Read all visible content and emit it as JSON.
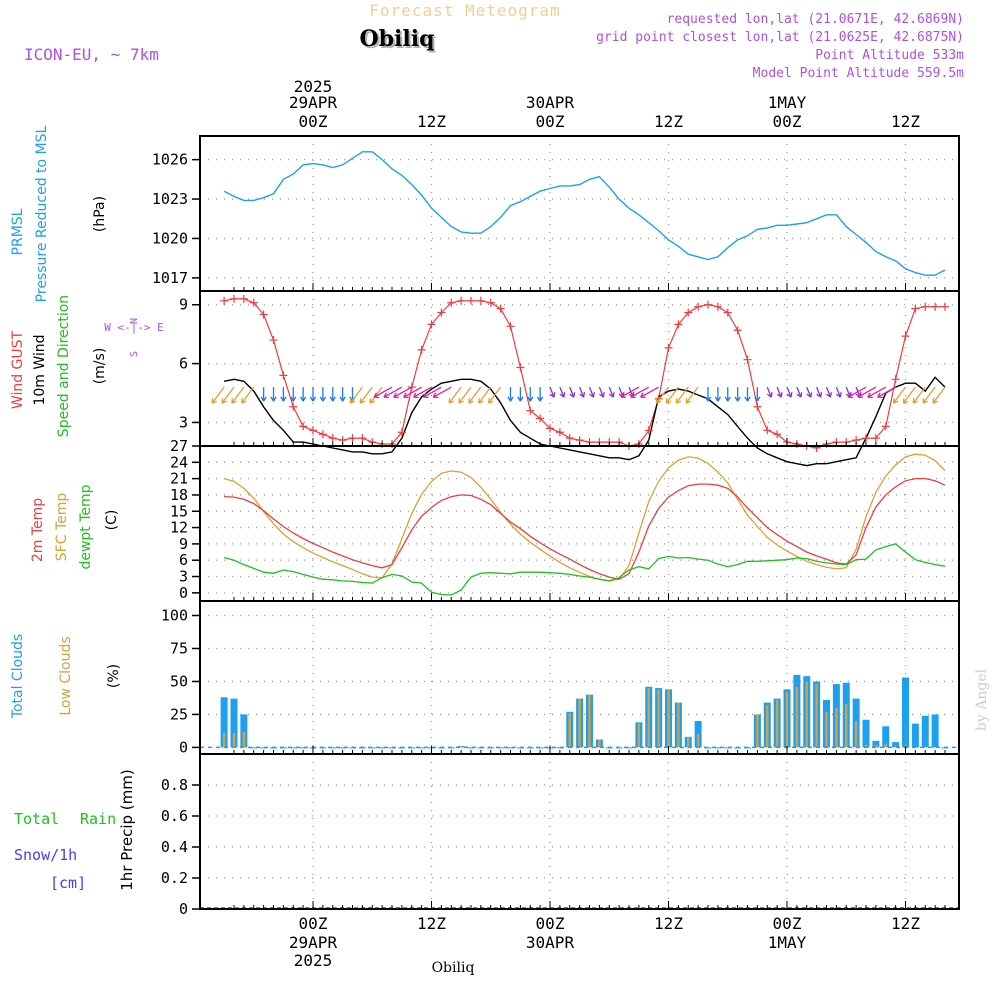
{
  "header": {
    "title": "Forecast Meteogram",
    "location": "Obiliq",
    "model": "ICON-EU, ~ 7km",
    "requested": "requested lon,lat (21.0671E, 42.6869N)",
    "gridpoint": "grid point closest lon,lat (21.0625E, 42.6875N)",
    "point_alt": "Point Altitude 533m",
    "model_alt": "Model Point Altitude 559.5m",
    "footer_location": "Obiliq",
    "credit": "by Angel"
  },
  "time_axis": {
    "top": {
      "year": "2025",
      "labels": [
        {
          "hour": 0,
          "line1": "29APR",
          "line2": "00Z"
        },
        {
          "hour": 12,
          "line1": "",
          "line2": "12Z"
        },
        {
          "hour": 24,
          "line1": "30APR",
          "line2": "00Z"
        },
        {
          "hour": 36,
          "line1": "",
          "line2": "12Z"
        },
        {
          "hour": 48,
          "line1": "1MAY",
          "line2": "00Z"
        },
        {
          "hour": 60,
          "line1": "",
          "line2": "12Z"
        }
      ]
    },
    "bottom": {
      "year": "2025",
      "labels": [
        {
          "hour": 0,
          "line1": "00Z",
          "line2": "29APR"
        },
        {
          "hour": 12,
          "line1": "12Z",
          "line2": ""
        },
        {
          "hour": 24,
          "line1": "00Z",
          "line2": "30APR"
        },
        {
          "hour": 36,
          "line1": "12Z",
          "line2": ""
        },
        {
          "hour": 48,
          "line1": "00Z",
          "line2": "1MAY"
        },
        {
          "hour": 60,
          "line1": "12Z",
          "line2": ""
        }
      ]
    }
  },
  "panels": {
    "pressure": {
      "label1": "PRMSL",
      "label2": "Pressure Reduced to MSL",
      "unit": "(hPa)"
    },
    "wind": {
      "label1": "Wind GUST",
      "label2": "10m Wind",
      "label3": "Speed and Direction",
      "unit": "(m/s)",
      "compass_n": "N",
      "compass_s": "S",
      "compass_row": "W <-|-> E"
    },
    "temp": {
      "label1": "2m Temp",
      "label2": "SFC Temp",
      "label3": "dewpt Temp",
      "unit": "(C)"
    },
    "clouds": {
      "label1": "Total Clouds",
      "label2": "Low Clouds",
      "unit": "(%)"
    },
    "precip": {
      "label1": "Total",
      "label2": "Rain",
      "label3": "Snow/1h",
      "label4": "[cm]",
      "unit": "1hr Precip (mm)"
    }
  },
  "colors": {
    "pressure": "#1ea0f0",
    "gust": "#f03c3c",
    "wind": "#000000",
    "temp2m": "#e84040",
    "sfc": "#e0a030",
    "dewpt": "#20c020",
    "total_clouds": "#1ea0f0",
    "low_clouds": "#d4a040",
    "title": "#f0d090",
    "purple": "#b050e0",
    "rain": "#20c020",
    "snow": "#4040ff"
  },
  "chart_data": [
    {
      "type": "line",
      "name": "PRMSL",
      "x_unit": "hours since 2025-04-29 00Z",
      "ylim": [
        1016,
        1027.8
      ],
      "yticks": [
        1017,
        1020,
        1023,
        1026
      ],
      "x": [
        -9,
        -8,
        -7,
        -6,
        -5,
        -4,
        -3,
        -2,
        -1,
        0,
        1,
        2,
        3,
        4,
        5,
        6,
        7,
        8,
        9,
        10,
        11,
        12,
        13,
        14,
        15,
        16,
        17,
        18,
        19,
        20,
        21,
        22,
        23,
        24,
        25,
        26,
        27,
        28,
        29,
        30,
        31,
        32,
        33,
        34,
        35,
        36,
        37,
        38,
        39,
        40,
        41,
        42,
        43,
        44,
        45,
        46,
        47,
        48,
        49,
        50,
        51,
        52,
        53,
        54,
        55,
        56,
        57,
        58,
        59,
        60,
        61,
        62,
        63,
        64
      ],
      "series": [
        {
          "name": "PRMSL",
          "values": [
            1023.6,
            1023.2,
            1022.9,
            1022.9,
            1023.1,
            1023.4,
            1024.5,
            1024.9,
            1025.6,
            1025.7,
            1025.6,
            1025.4,
            1025.6,
            1026.1,
            1026.6,
            1026.6,
            1026.0,
            1025.3,
            1024.8,
            1024.1,
            1023.3,
            1022.3,
            1021.6,
            1020.9,
            1020.5,
            1020.4,
            1020.4,
            1020.9,
            1021.6,
            1022.5,
            1022.8,
            1023.2,
            1023.6,
            1023.8,
            1024.0,
            1024.0,
            1024.1,
            1024.5,
            1024.7,
            1023.9,
            1023.0,
            1022.3,
            1021.8,
            1021.2,
            1020.6,
            1019.9,
            1019.4,
            1018.8,
            1018.6,
            1018.4,
            1018.6,
            1019.3,
            1019.9,
            1020.2,
            1020.7,
            1020.8,
            1021.0,
            1021.0,
            1021.1,
            1021.2,
            1021.5,
            1021.8,
            1021.8,
            1020.9,
            1020.3,
            1019.7,
            1019.0,
            1018.6,
            1018.3,
            1017.7,
            1017.4,
            1017.2,
            1017.2,
            1017.6
          ]
        }
      ]
    },
    {
      "type": "line",
      "name": "Wind",
      "x_unit": "hours since 2025-04-29 00Z",
      "ylim": [
        1.8,
        9.7
      ],
      "yticks": [
        3,
        6,
        9
      ],
      "x": [
        -9,
        -8,
        -7,
        -6,
        -5,
        -4,
        -3,
        -2,
        -1,
        0,
        1,
        2,
        3,
        4,
        5,
        6,
        7,
        8,
        9,
        10,
        11,
        12,
        13,
        14,
        15,
        16,
        17,
        18,
        19,
        20,
        21,
        22,
        23,
        24,
        25,
        26,
        27,
        28,
        29,
        30,
        31,
        32,
        33,
        34,
        35,
        36,
        37,
        38,
        39,
        40,
        41,
        42,
        43,
        44,
        45,
        46,
        47,
        48,
        49,
        50,
        51,
        52,
        53,
        54,
        55,
        56,
        57,
        58,
        59,
        60,
        61,
        62,
        63,
        64
      ],
      "series": [
        {
          "name": "Wind GUST",
          "values": [
            9.2,
            9.3,
            9.3,
            9.1,
            8.5,
            7.2,
            5.4,
            3.8,
            2.8,
            2.6,
            2.4,
            2.2,
            2.1,
            2.2,
            2.2,
            2.0,
            1.9,
            1.9,
            2.5,
            4.8,
            6.7,
            8.0,
            8.6,
            9.1,
            9.2,
            9.2,
            9.2,
            9.1,
            8.8,
            7.9,
            5.8,
            3.6,
            3.2,
            2.7,
            2.5,
            2.2,
            2.1,
            2.0,
            2.0,
            2.0,
            2.0,
            1.8,
            1.9,
            2.6,
            4.2,
            6.8,
            8.0,
            8.6,
            8.9,
            9.0,
            8.9,
            8.6,
            7.7,
            6.2,
            3.8,
            2.6,
            2.4,
            2.0,
            1.9,
            1.8,
            1.7,
            1.9,
            2.0,
            2.0,
            2.1,
            2.2,
            2.2,
            2.8,
            5.2,
            7.4,
            8.8,
            8.9,
            8.9,
            8.9
          ]
        },
        {
          "name": "10m Wind",
          "values": [
            5.1,
            5.2,
            5.1,
            4.6,
            3.8,
            3.1,
            2.6,
            2.0,
            2.0,
            1.9,
            1.8,
            1.7,
            1.6,
            1.5,
            1.5,
            1.4,
            1.4,
            1.5,
            2.2,
            3.5,
            4.3,
            4.7,
            5.0,
            5.1,
            5.2,
            5.2,
            5.1,
            4.7,
            4.0,
            3.1,
            2.5,
            2.2,
            1.9,
            1.8,
            1.7,
            1.6,
            1.5,
            1.4,
            1.3,
            1.2,
            1.2,
            1.1,
            1.3,
            2.1,
            4.3,
            4.6,
            4.7,
            4.6,
            4.4,
            4.2,
            3.8,
            3.4,
            2.8,
            2.2,
            1.7,
            1.4,
            1.2,
            1.0,
            0.9,
            0.8,
            0.9,
            0.9,
            1.0,
            1.1,
            1.2,
            2.2,
            3.3,
            4.5,
            4.8,
            5.0,
            5.0,
            4.6,
            5.3,
            4.8
          ]
        }
      ]
    },
    {
      "type": "line",
      "name": "Temperature",
      "x_unit": "hours since 2025-04-29 00Z",
      "ylim": [
        -1.5,
        27
      ],
      "yticks": [
        0,
        3,
        6,
        9,
        12,
        15,
        18,
        21,
        24,
        27
      ],
      "x": [
        -9,
        -8,
        -7,
        -6,
        -5,
        -4,
        -3,
        -2,
        -1,
        0,
        1,
        2,
        3,
        4,
        5,
        6,
        7,
        8,
        9,
        10,
        11,
        12,
        13,
        14,
        15,
        16,
        17,
        18,
        19,
        20,
        21,
        22,
        23,
        24,
        25,
        26,
        27,
        28,
        29,
        30,
        31,
        32,
        33,
        34,
        35,
        36,
        37,
        38,
        39,
        40,
        41,
        42,
        43,
        44,
        45,
        46,
        47,
        48,
        49,
        50,
        51,
        52,
        53,
        54,
        55,
        56,
        57,
        58,
        59,
        60,
        61,
        62,
        63,
        64
      ],
      "series": [
        {
          "name": "2m Temp",
          "values": [
            17.7,
            17.6,
            17.2,
            16.4,
            15.1,
            13.6,
            12.2,
            11.0,
            10.0,
            9.1,
            8.3,
            7.5,
            6.8,
            6.1,
            5.5,
            5.0,
            4.6,
            5.2,
            8.3,
            11.6,
            14.1,
            15.7,
            17.0,
            17.7,
            18.0,
            17.9,
            17.2,
            16.2,
            14.6,
            13.0,
            11.8,
            10.4,
            9.2,
            8.1,
            7.1,
            6.2,
            5.2,
            4.3,
            3.5,
            2.9,
            2.5,
            3.5,
            7.5,
            12.3,
            15.5,
            17.6,
            18.8,
            19.7,
            20.0,
            20.0,
            19.8,
            19.2,
            17.6,
            15.6,
            13.8,
            12.0,
            10.7,
            9.5,
            8.5,
            7.5,
            6.8,
            6.2,
            5.5,
            5.3,
            7.0,
            12.0,
            15.8,
            18.0,
            19.5,
            20.6,
            21.0,
            21.0,
            20.6,
            19.8
          ]
        },
        {
          "name": "SFC Temp",
          "values": [
            21.0,
            20.5,
            19.2,
            17.4,
            15.0,
            12.7,
            10.8,
            9.4,
            8.3,
            7.3,
            6.5,
            5.7,
            5.0,
            4.3,
            3.5,
            2.9,
            2.8,
            5.3,
            10.0,
            14.6,
            18.1,
            20.5,
            22.0,
            22.4,
            22.2,
            21.2,
            19.4,
            17.2,
            14.8,
            12.6,
            10.8,
            9.3,
            8.0,
            6.8,
            5.6,
            4.6,
            3.8,
            3.0,
            2.5,
            2.2,
            2.5,
            5.0,
            11.0,
            16.8,
            20.5,
            23.0,
            24.4,
            25.0,
            24.8,
            23.8,
            22.2,
            20.2,
            17.2,
            14.3,
            12.2,
            10.2,
            8.8,
            7.7,
            6.7,
            5.8,
            5.2,
            4.7,
            4.4,
            4.6,
            8.0,
            14.0,
            18.5,
            21.5,
            23.5,
            25.0,
            25.5,
            25.3,
            24.3,
            22.5
          ]
        },
        {
          "name": "dewpt Temp",
          "values": [
            6.5,
            6.0,
            5.2,
            4.5,
            3.8,
            3.6,
            4.2,
            3.9,
            3.4,
            2.9,
            2.5,
            2.4,
            2.2,
            2.1,
            1.9,
            1.8,
            2.8,
            3.4,
            3.1,
            2.0,
            1.8,
            0.1,
            -0.3,
            -0.4,
            0.5,
            2.9,
            3.6,
            3.7,
            3.6,
            3.5,
            3.8,
            3.8,
            3.8,
            3.7,
            3.6,
            3.4,
            3.1,
            2.9,
            2.5,
            2.2,
            2.8,
            4.2,
            4.8,
            4.4,
            6.3,
            6.7,
            6.4,
            6.5,
            6.2,
            6.0,
            5.3,
            4.8,
            5.2,
            5.8,
            5.8,
            5.9,
            6.0,
            6.1,
            6.4,
            6.3,
            5.8,
            5.5,
            5.3,
            5.2,
            6.1,
            6.2,
            7.9,
            8.5,
            9.0,
            7.5,
            6.1,
            5.6,
            5.2,
            4.9
          ]
        }
      ]
    },
    {
      "type": "bar",
      "name": "Clouds",
      "x_unit": "hours since 2025-04-29 00Z",
      "ylim": [
        -5,
        111
      ],
      "yticks": [
        0,
        25,
        50,
        75,
        100
      ],
      "x": [
        -9,
        -8,
        -7,
        -6,
        -5,
        -4,
        -3,
        -2,
        -1,
        0,
        1,
        2,
        3,
        4,
        5,
        6,
        7,
        8,
        9,
        10,
        11,
        12,
        13,
        14,
        15,
        16,
        17,
        18,
        19,
        20,
        21,
        22,
        23,
        24,
        25,
        26,
        27,
        28,
        29,
        30,
        31,
        32,
        33,
        34,
        35,
        36,
        37,
        38,
        39,
        40,
        41,
        42,
        43,
        44,
        45,
        46,
        47,
        48,
        49,
        50,
        51,
        52,
        53,
        54,
        55,
        56,
        57,
        58,
        59,
        60,
        61,
        62,
        63,
        64
      ],
      "series": [
        {
          "name": "Total Clouds",
          "values": [
            38,
            37,
            25,
            0,
            0,
            0,
            0,
            0,
            0,
            0,
            0,
            0,
            0,
            0,
            0,
            0,
            0,
            0,
            0,
            0,
            0,
            0,
            0,
            0,
            1,
            0,
            0,
            0,
            0,
            0,
            0,
            0,
            0,
            0,
            0,
            27,
            37,
            40,
            6,
            0,
            0,
            0,
            19,
            46,
            45,
            44,
            34,
            8,
            20,
            0,
            0,
            0,
            0,
            0,
            25,
            34,
            37,
            44,
            55,
            54,
            50,
            36,
            48,
            49,
            37,
            21,
            5,
            16,
            4,
            53,
            18,
            24,
            25,
            0
          ]
        },
        {
          "name": "Low Clouds",
          "values": [
            11,
            11,
            12,
            0,
            0,
            0,
            0,
            0,
            0,
            0,
            0,
            0,
            0,
            0,
            0,
            0,
            0,
            0,
            0,
            0,
            0,
            0,
            0,
            0,
            1,
            0,
            0,
            0,
            0,
            0,
            0,
            0,
            0,
            0,
            0,
            26,
            37,
            40,
            6,
            0,
            0,
            0,
            18,
            45,
            44,
            44,
            34,
            8,
            10,
            0,
            0,
            0,
            0,
            0,
            25,
            32,
            36,
            42,
            46,
            50,
            48,
            27,
            30,
            33,
            20,
            2,
            2,
            3,
            1,
            2,
            0,
            0,
            0,
            0
          ]
        }
      ]
    },
    {
      "type": "bar",
      "name": "1hr Precip",
      "ylim": [
        0,
        1.0
      ],
      "yticks": [
        0,
        0.2,
        0.4,
        0.6,
        0.8
      ],
      "series": [
        {
          "name": "Total",
          "values": []
        },
        {
          "name": "Rain",
          "values": []
        }
      ]
    }
  ]
}
